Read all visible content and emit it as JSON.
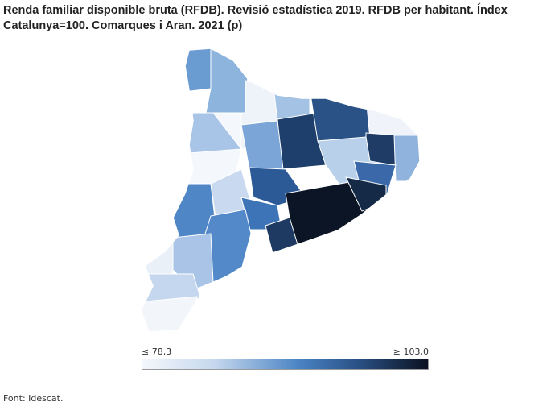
{
  "title": "Renda familiar disponible bruta (RFDB). Revisió estadística 2019. RFDB per habitant. Índex Catalunya=100. Comarques i Aran. 2021 (p)",
  "legend": {
    "min_label": "≤ 78,3",
    "max_label": "≥ 103,0",
    "min": 78.3,
    "max": 103.0,
    "colors": [
      "#f4f7fb",
      "#c6d8ee",
      "#4a83c4",
      "#2a5287",
      "#0b1220"
    ]
  },
  "source": "Font: Idescat."
}
